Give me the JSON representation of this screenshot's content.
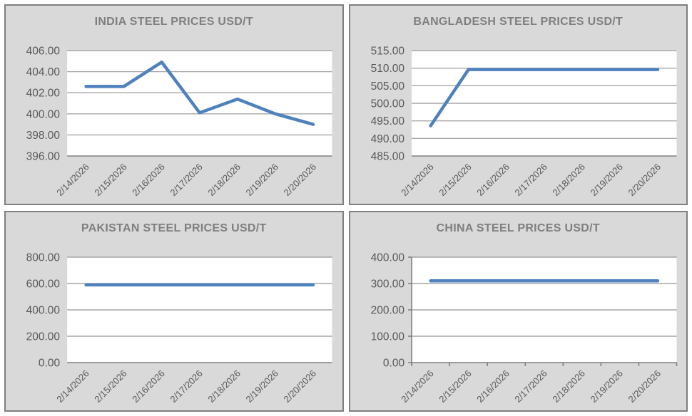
{
  "style": {
    "line_color": "#4F81BD",
    "grid_color": "#A6A6A6",
    "axis_color": "#808080",
    "title_color": "#7F7F7F",
    "tick_label_color": "#595959",
    "panel_bg": "#D9D9D9",
    "plot_bg": "#FFFFFF",
    "panel_border": "#7F7F7F",
    "page_bg": "#FFFFFF"
  },
  "chart_data": [
    {
      "type": "line",
      "title": "INDIA STEEL PRICES USD/T",
      "categories": [
        "2/14/2026",
        "2/15/2026",
        "2/16/2026",
        "2/17/2026",
        "2/18/2026",
        "2/19/2026",
        "2/20/2026"
      ],
      "values": [
        402.6,
        402.6,
        404.9,
        400.1,
        401.4,
        400.0,
        399.0
      ],
      "ylim": [
        396,
        406
      ],
      "y_step": 2,
      "y_tick_labels": [
        "396.00",
        "398.00",
        "400.00",
        "402.00",
        "404.00",
        "406.00"
      ],
      "xlabel": "",
      "ylabel": "",
      "grid": true,
      "legend": false,
      "axis_tick_marks": false
    },
    {
      "type": "line",
      "title": "BANGLADESH STEEL PRICES USD/T",
      "categories": [
        "2/14/2026",
        "2/15/2026",
        "2/16/2026",
        "2/17/2026",
        "2/18/2026",
        "2/19/2026",
        "2/20/2026"
      ],
      "values": [
        493.6,
        509.6,
        509.6,
        509.6,
        509.6,
        509.6,
        509.6
      ],
      "ylim": [
        485,
        515
      ],
      "y_step": 5,
      "y_tick_labels": [
        "485.00",
        "490.00",
        "495.00",
        "500.00",
        "505.00",
        "510.00",
        "515.00"
      ],
      "xlabel": "",
      "ylabel": "",
      "grid": true,
      "legend": false,
      "axis_tick_marks": false
    },
    {
      "type": "line",
      "title": "PAKISTAN STEEL PRICES USD/T",
      "categories": [
        "2/14/2026",
        "2/15/2026",
        "2/16/2026",
        "2/17/2026",
        "2/18/2026",
        "2/19/2026",
        "2/20/2026"
      ],
      "values": [
        590,
        590,
        590,
        590,
        590,
        590,
        590
      ],
      "ylim": [
        0,
        800
      ],
      "y_step": 200,
      "y_tick_labels": [
        "0.00",
        "200.00",
        "400.00",
        "600.00",
        "800.00"
      ],
      "xlabel": "",
      "ylabel": "",
      "grid": true,
      "legend": false,
      "axis_tick_marks": false
    },
    {
      "type": "line",
      "title": "CHINA STEEL PRICES USD/T",
      "categories": [
        "2/14/2026",
        "2/15/2026",
        "2/16/2026",
        "2/17/2026",
        "2/18/2026",
        "2/19/2026",
        "2/20/2026"
      ],
      "values": [
        310,
        310,
        310,
        310,
        310,
        310,
        310
      ],
      "ylim": [
        0,
        400
      ],
      "y_step": 100,
      "y_tick_labels": [
        "0.00",
        "100.00",
        "200.00",
        "300.00",
        "400.00"
      ],
      "xlabel": "",
      "ylabel": "",
      "grid": true,
      "legend": false,
      "axis_tick_marks": true
    }
  ]
}
